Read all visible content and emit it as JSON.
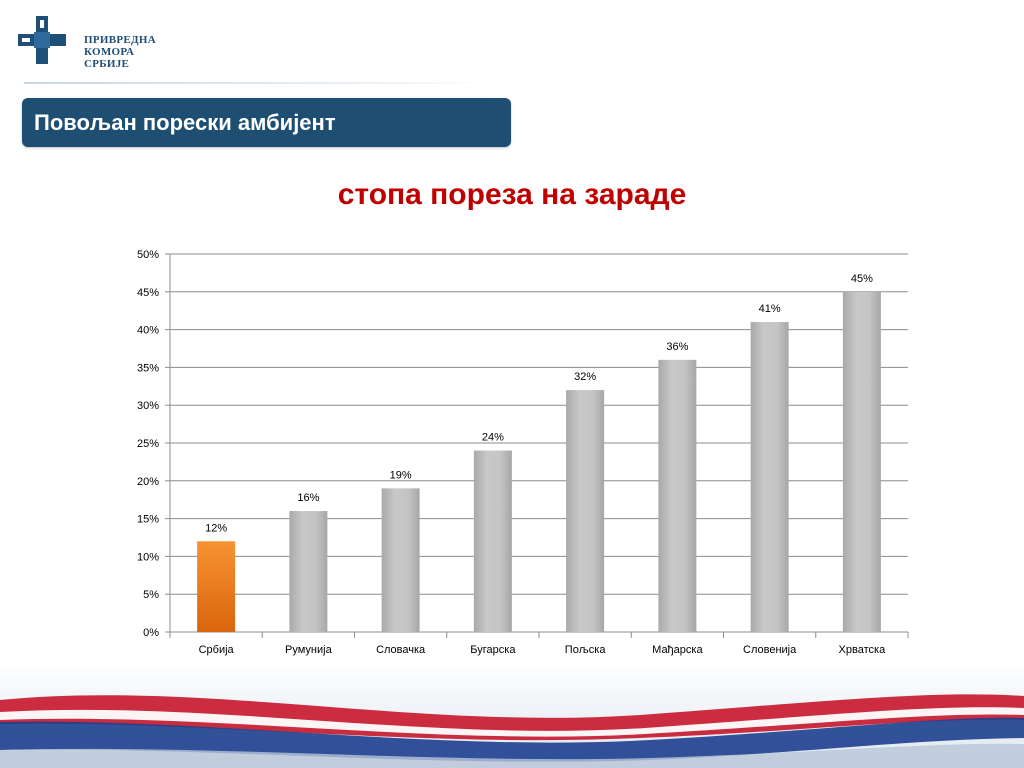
{
  "logo": {
    "lines": [
      "ПРИВРЕДНА",
      "КОМОРА",
      "СРБИЈЕ"
    ],
    "icon": "chamber-of-commerce-cross-icon"
  },
  "section": {
    "title": "Повољан порески амбијент"
  },
  "colors": {
    "banner": "#1e4f73",
    "title_red": "#c00000",
    "bar_grey": "#bfbfbf",
    "bar_highlight": "#f07f18"
  },
  "chart_data": {
    "type": "bar",
    "title": "стопа пореза на зараде",
    "categories": [
      "Србија",
      "Румунија",
      "Словачка",
      "Бугарска",
      "Пољска",
      "Мађарска",
      "Словенија",
      "Хрватска"
    ],
    "values": [
      12,
      16,
      19,
      24,
      32,
      36,
      41,
      45
    ],
    "data_labels": [
      "12%",
      "16%",
      "19%",
      "24%",
      "32%",
      "36%",
      "41%",
      "45%"
    ],
    "highlight_category": "Србија",
    "y_ticks": [
      "0%",
      "5%",
      "10%",
      "15%",
      "20%",
      "25%",
      "30%",
      "35%",
      "40%",
      "45%",
      "50%"
    ],
    "ylim": [
      0,
      50
    ],
    "grid": true,
    "legend": "none",
    "xlabel": "",
    "ylabel": ""
  }
}
